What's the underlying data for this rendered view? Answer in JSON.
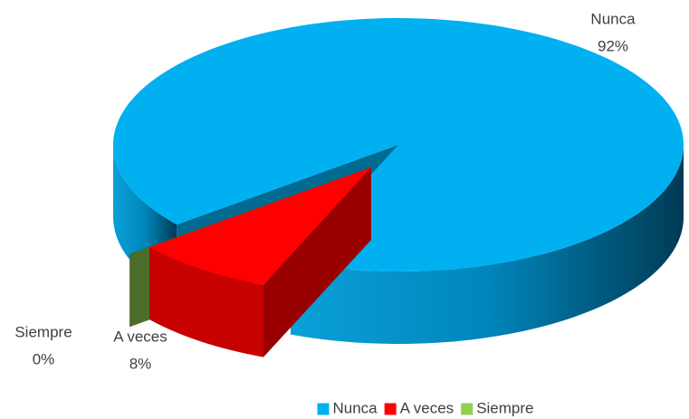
{
  "chart_data": {
    "type": "pie3d",
    "categories": [
      "Nunca",
      "A veces",
      "Siempre"
    ],
    "values": [
      92,
      8,
      0
    ],
    "value_labels": [
      "92%",
      "8%",
      "0%"
    ],
    "colors": [
      "#00b0f0",
      "#ff0000",
      "#92d050"
    ],
    "exploded": [
      false,
      true,
      true
    ],
    "legend": "bottom"
  }
}
